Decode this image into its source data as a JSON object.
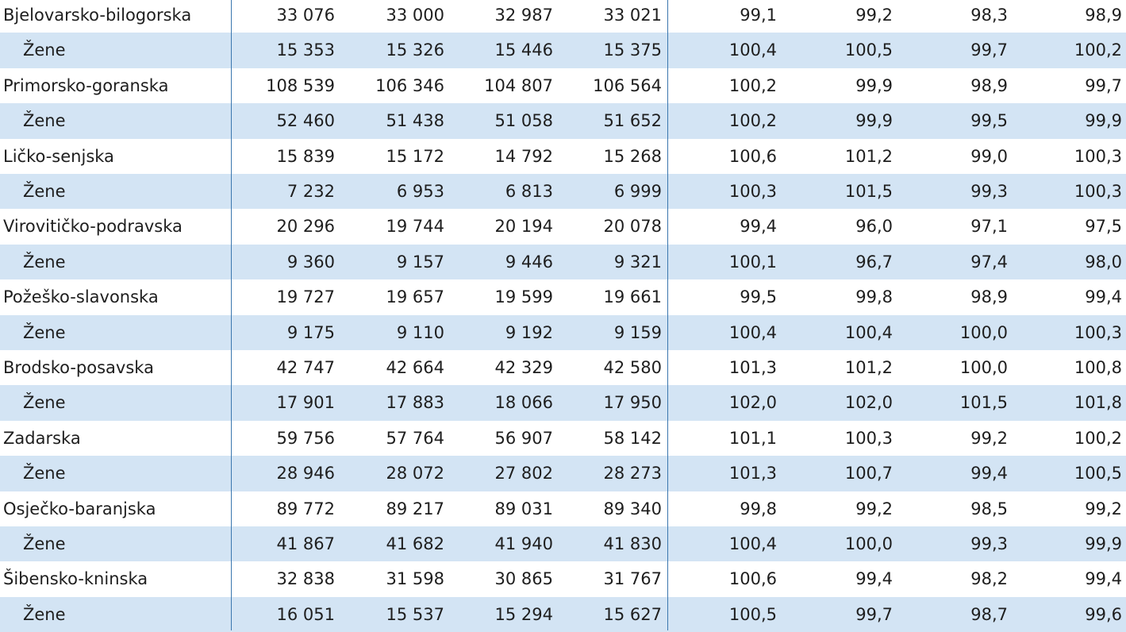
{
  "rows": [
    [
      "Bjelovarsko-bilogorska",
      "33 076",
      "33 000",
      "32 987",
      "33 021",
      "99,1",
      "99,2",
      "98,3",
      "98,9"
    ],
    [
      "Žene",
      "15 353",
      "15 326",
      "15 446",
      "15 375",
      "100,4",
      "100,5",
      "99,7",
      "100,2"
    ],
    [
      "Primorsko-goranska",
      "108 539",
      "106 346",
      "104 807",
      "106 564",
      "100,2",
      "99,9",
      "98,9",
      "99,7"
    ],
    [
      "Žene",
      "52 460",
      "51 438",
      "51 058",
      "51 652",
      "100,2",
      "99,9",
      "99,5",
      "99,9"
    ],
    [
      "Ličko-senjska",
      "15 839",
      "15 172",
      "14 792",
      "15 268",
      "100,6",
      "101,2",
      "99,0",
      "100,3"
    ],
    [
      "Žene",
      "7 232",
      "6 953",
      "6 813",
      "6 999",
      "100,3",
      "101,5",
      "99,3",
      "100,3"
    ],
    [
      "Virovitičko-podravska",
      "20 296",
      "19 744",
      "20 194",
      "20 078",
      "99,4",
      "96,0",
      "97,1",
      "97,5"
    ],
    [
      "Žene",
      "9 360",
      "9 157",
      "9 446",
      "9 321",
      "100,1",
      "96,7",
      "97,4",
      "98,0"
    ],
    [
      "Požeško-slavonska",
      "19 727",
      "19 657",
      "19 599",
      "19 661",
      "99,5",
      "99,8",
      "98,9",
      "99,4"
    ],
    [
      "Žene",
      "9 175",
      "9 110",
      "9 192",
      "9 159",
      "100,4",
      "100,4",
      "100,0",
      "100,3"
    ],
    [
      "Brodsko-posavska",
      "42 747",
      "42 664",
      "42 329",
      "42 580",
      "101,3",
      "101,2",
      "100,0",
      "100,8"
    ],
    [
      "Žene",
      "17 901",
      "17 883",
      "18 066",
      "17 950",
      "102,0",
      "102,0",
      "101,5",
      "101,8"
    ],
    [
      "Zadarska",
      "59 756",
      "57 764",
      "56 907",
      "58 142",
      "101,1",
      "100,3",
      "99,2",
      "100,2"
    ],
    [
      "Žene",
      "28 946",
      "28 072",
      "27 802",
      "28 273",
      "101,3",
      "100,7",
      "99,4",
      "100,5"
    ],
    [
      "Osječko-baranjska",
      "89 772",
      "89 217",
      "89 031",
      "89 340",
      "99,8",
      "99,2",
      "98,5",
      "99,2"
    ],
    [
      "Žene",
      "41 867",
      "41 682",
      "41 940",
      "41 830",
      "100,4",
      "100,0",
      "99,3",
      "99,9"
    ],
    [
      "Šibensko-kninska",
      "32 838",
      "31 598",
      "30 865",
      "31 767",
      "100,6",
      "99,4",
      "98,2",
      "99,4"
    ],
    [
      "Žene",
      "16 051",
      "15 537",
      "15 294",
      "15 627",
      "100,5",
      "99,7",
      "98,7",
      "99,6"
    ]
  ]
}
